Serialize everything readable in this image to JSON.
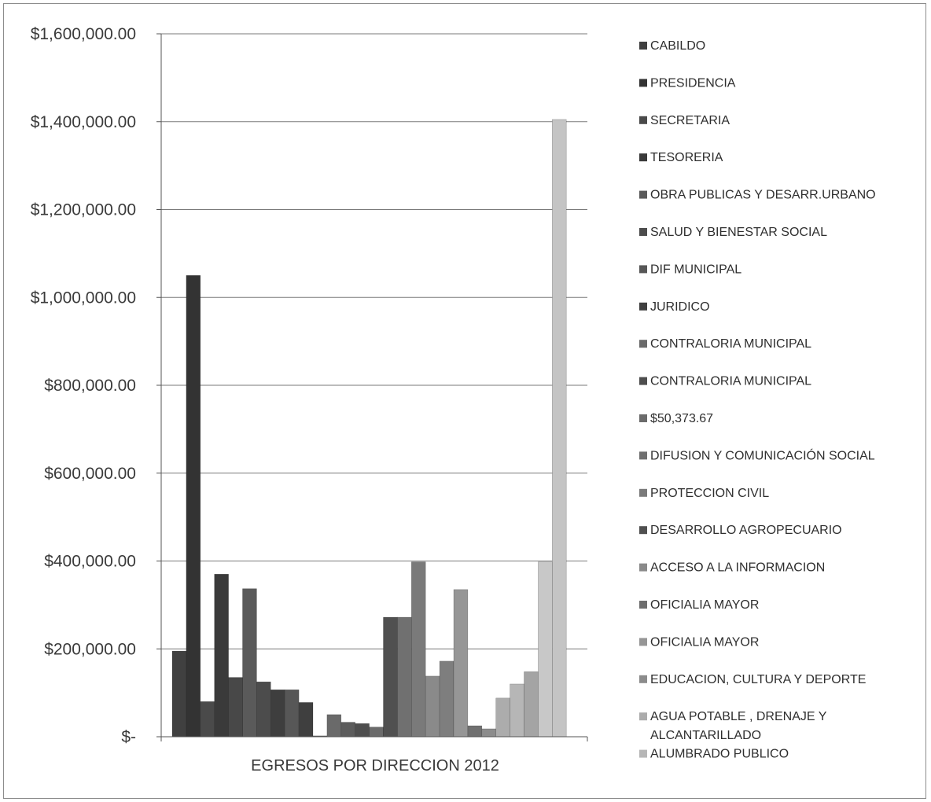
{
  "chart_data": {
    "type": "bar",
    "title": "",
    "xlabel": "EGRESOS POR DIRECCION 2012",
    "ylabel": "",
    "ylim": [
      0,
      1600000
    ],
    "y_ticks": [
      {
        "value": 0,
        "label": "$-"
      },
      {
        "value": 200000,
        "label": "$200,000.00"
      },
      {
        "value": 400000,
        "label": "$400,000.00"
      },
      {
        "value": 600000,
        "label": "$600,000.00"
      },
      {
        "value": 800000,
        "label": "$800,000.00"
      },
      {
        "value": 1000000,
        "label": "$1,000,000.00"
      },
      {
        "value": 1200000,
        "label": "$1,200,000.00"
      },
      {
        "value": 1400000,
        "label": "$1,400,000.00"
      },
      {
        "value": 1600000,
        "label": "$1,600,000.00"
      }
    ],
    "grid": true,
    "legend_position": "right",
    "bars": [
      {
        "value": 195000,
        "color": "#404040"
      },
      {
        "value": 1050000,
        "color": "#333333"
      },
      {
        "value": 80000,
        "color": "#4a4a4a"
      },
      {
        "value": 370000,
        "color": "#3a3a3a"
      },
      {
        "value": 135000,
        "color": "#484848"
      },
      {
        "value": 337000,
        "color": "#5a5a5a"
      },
      {
        "value": 125000,
        "color": "#4c4c4c"
      },
      {
        "value": 107000,
        "color": "#3e3e3e"
      },
      {
        "value": 107000,
        "color": "#575757"
      },
      {
        "value": 78000,
        "color": "#3f3f3f"
      },
      {
        "value": 2000,
        "color": "#5f5f5f"
      },
      {
        "value": 50374,
        "color": "#6a6a6a"
      },
      {
        "value": 33000,
        "color": "#5c5c5c"
      },
      {
        "value": 30000,
        "color": "#4e4e4e"
      },
      {
        "value": 22000,
        "color": "#6b6b6b"
      },
      {
        "value": 272000,
        "color": "#505050"
      },
      {
        "value": 272000,
        "color": "#707070"
      },
      {
        "value": 398000,
        "color": "#7a7a7a"
      },
      {
        "value": 138000,
        "color": "#8a8a8a"
      },
      {
        "value": 172000,
        "color": "#7e7e7e"
      },
      {
        "value": 335000,
        "color": "#969696"
      },
      {
        "value": 25000,
        "color": "#707070"
      },
      {
        "value": 18000,
        "color": "#8c8c8c"
      },
      {
        "value": 88000,
        "color": "#acacac"
      },
      {
        "value": 120000,
        "color": "#b6b6b6"
      },
      {
        "value": 148000,
        "color": "#a4a4a4"
      },
      {
        "value": 398000,
        "color": "#c8c8c8"
      },
      {
        "value": 1405000,
        "color": "#c4c4c4"
      }
    ],
    "legend": [
      {
        "label": "CABILDO",
        "color": "#404040"
      },
      {
        "label": "PRESIDENCIA",
        "color": "#333333"
      },
      {
        "label": "SECRETARIA",
        "color": "#4a4a4a"
      },
      {
        "label": "TESORERIA",
        "color": "#3a3a3a"
      },
      {
        "label": "OBRA PUBLICAS Y DESARR.URBANO",
        "color": "#5a5a5a"
      },
      {
        "label": "SALUD Y BIENESTAR SOCIAL",
        "color": "#4c4c4c"
      },
      {
        "label": "DIF MUNICIPAL",
        "color": "#575757"
      },
      {
        "label": "JURIDICO",
        "color": "#3f3f3f"
      },
      {
        "label": "CONTRALORIA MUNICIPAL",
        "color": "#6a6a6a"
      },
      {
        "label": "CONTRALORIA MUNICIPAL",
        "color": "#4e4e4e"
      },
      {
        "label": "$50,373.67",
        "color": "#6b6b6b"
      },
      {
        "label": "DIFUSION Y COMUNICACIÓN SOCIAL",
        "color": "#707070"
      },
      {
        "label": "PROTECCION CIVIL",
        "color": "#7a7a7a"
      },
      {
        "label": "DESARROLLO AGROPECUARIO",
        "color": "#505050"
      },
      {
        "label": "ACCESO A LA INFORMACION",
        "color": "#8a8a8a"
      },
      {
        "label": "OFICIALIA MAYOR",
        "color": "#6e6e6e"
      },
      {
        "label": "OFICIALIA MAYOR",
        "color": "#969696"
      },
      {
        "label": "EDUCACION, CULTURA Y DEPORTE",
        "color": "#8c8c8c"
      },
      {
        "label": "AGUA POTABLE , DRENAJE Y ALCANTARILLADO",
        "color": "#acacac"
      },
      {
        "label": "ALUMBRADO PUBLICO",
        "color": "#b6b6b6"
      }
    ]
  }
}
